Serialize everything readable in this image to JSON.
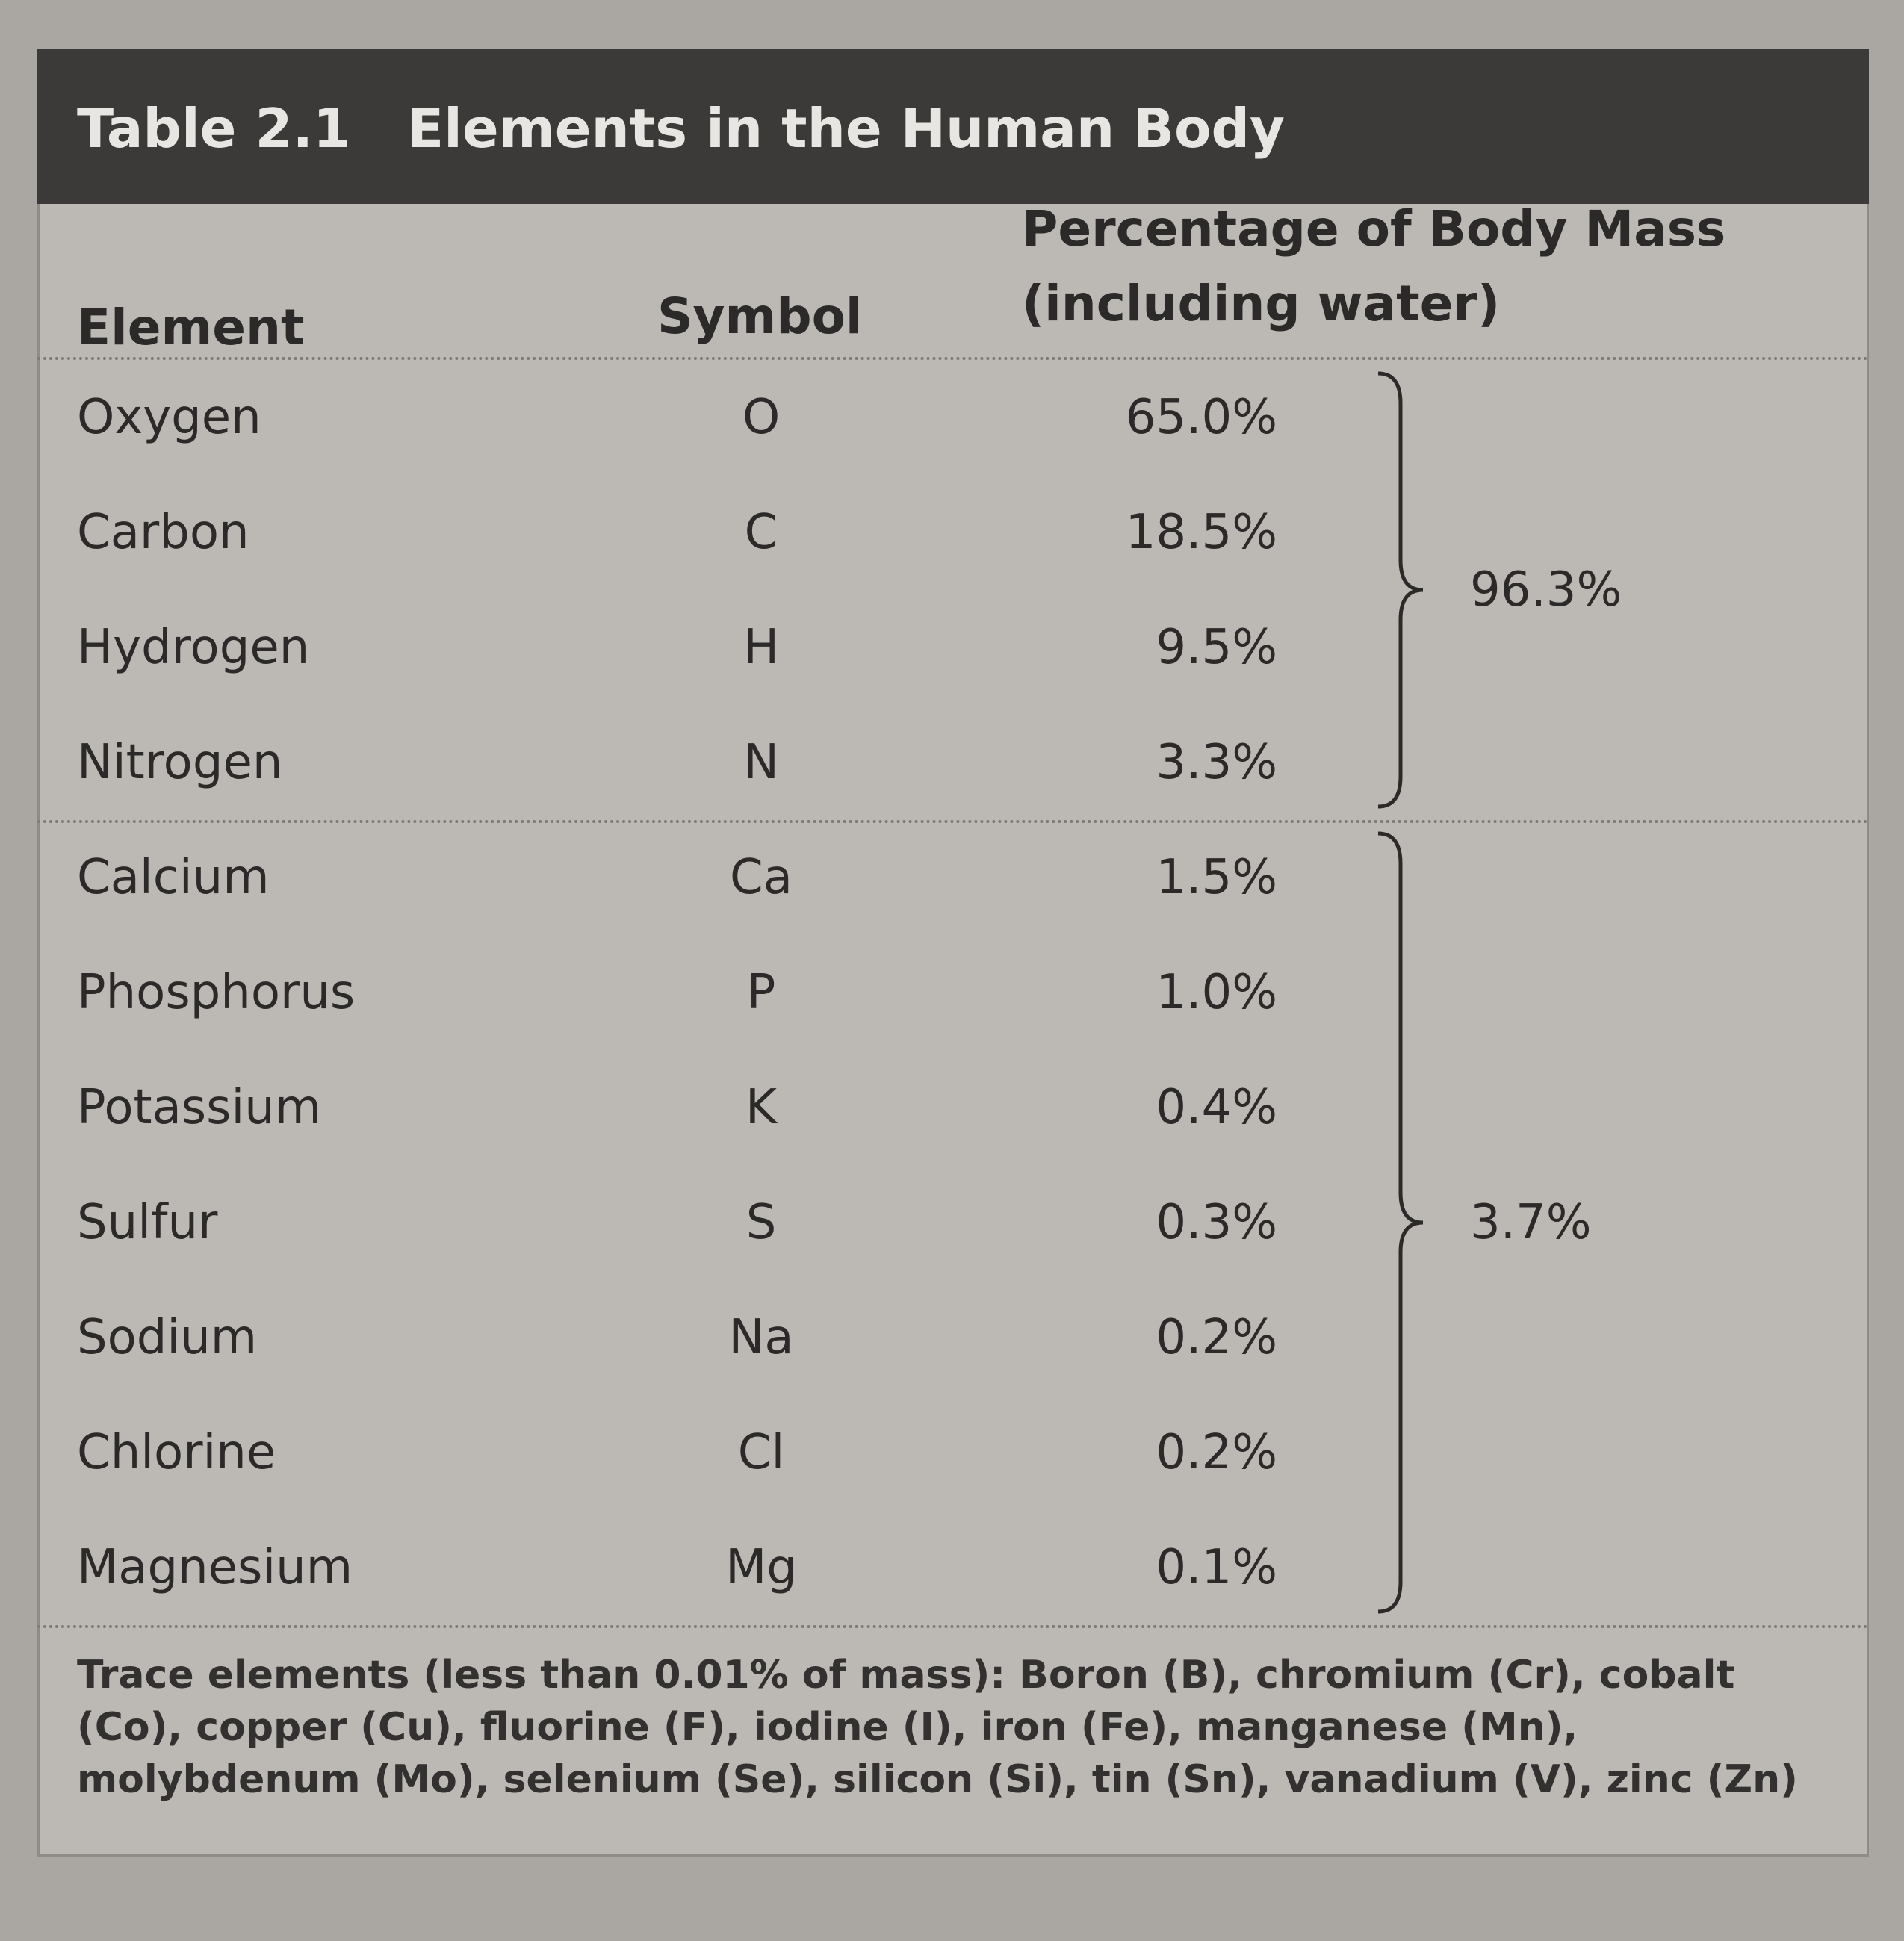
{
  "table": {
    "label": "Table 2.1",
    "title": "Elements in the Human Body",
    "headers": {
      "element": "Element",
      "symbol": "Symbol",
      "percentage": [
        "Percentage of Body Mass",
        "(including water)"
      ]
    },
    "groups": [
      {
        "total": "96.3%",
        "rows": [
          [
            "Oxygen",
            "O",
            "65.0%"
          ],
          [
            "Carbon",
            "C",
            "18.5%"
          ],
          [
            "Hydrogen",
            "H",
            "9.5%"
          ],
          [
            "Nitrogen",
            "N",
            "3.3%"
          ]
        ]
      },
      {
        "total": "3.7%",
        "rows": [
          [
            "Calcium",
            "Ca",
            "1.5%"
          ],
          [
            "Phosphorus",
            "P",
            "1.0%"
          ],
          [
            "Potassium",
            "K",
            "0.4%"
          ],
          [
            "Sulfur",
            "S",
            "0.3%"
          ],
          [
            "Sodium",
            "Na",
            "0.2%"
          ],
          [
            "Chlorine",
            "Cl",
            "0.2%"
          ],
          [
            "Magnesium",
            "Mg",
            "0.1%"
          ]
        ]
      }
    ],
    "footnote": "Trace elements (less than 0.01% of mass): Boron (B), chromium (Cr), cobalt (Co), copper (Cu), fluorine (F), iodine (I), iron (Fe), manganese (Mn), molybdenum (Mo), selenium (Se), silicon (Si), tin (Sn), vanadium (V), zinc (Zn)"
  }
}
